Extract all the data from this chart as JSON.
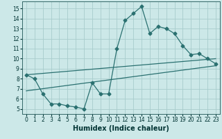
{
  "xlabel": "Humidex (Indice chaleur)",
  "bg_color": "#cce8e8",
  "grid_color": "#a8cccc",
  "line_color": "#2a7070",
  "xlim": [
    -0.5,
    23.5
  ],
  "ylim": [
    4.5,
    15.7
  ],
  "yticks": [
    5,
    6,
    7,
    8,
    9,
    10,
    11,
    12,
    13,
    14,
    15
  ],
  "xticks": [
    0,
    1,
    2,
    3,
    4,
    5,
    6,
    7,
    8,
    9,
    10,
    11,
    12,
    13,
    14,
    15,
    16,
    17,
    18,
    19,
    20,
    21,
    22,
    23
  ],
  "line1_x": [
    0,
    1,
    2,
    3,
    4,
    5,
    6,
    7,
    8,
    9,
    10,
    11,
    12,
    13,
    14,
    15,
    16,
    17,
    18,
    19,
    20,
    21,
    22,
    23
  ],
  "line1_y": [
    8.4,
    8.0,
    6.5,
    5.5,
    5.5,
    5.3,
    5.2,
    5.0,
    7.6,
    6.5,
    6.5,
    11.0,
    13.8,
    14.5,
    15.2,
    12.5,
    13.2,
    13.0,
    12.5,
    11.3,
    10.4,
    10.5,
    10.0,
    9.5
  ],
  "line2_x": [
    0,
    23
  ],
  "line2_y": [
    8.4,
    10.0
  ],
  "line3_x": [
    0,
    23
  ],
  "line3_y": [
    6.8,
    9.3
  ],
  "xlabel_fontsize": 7,
  "tick_fontsize": 5.5
}
